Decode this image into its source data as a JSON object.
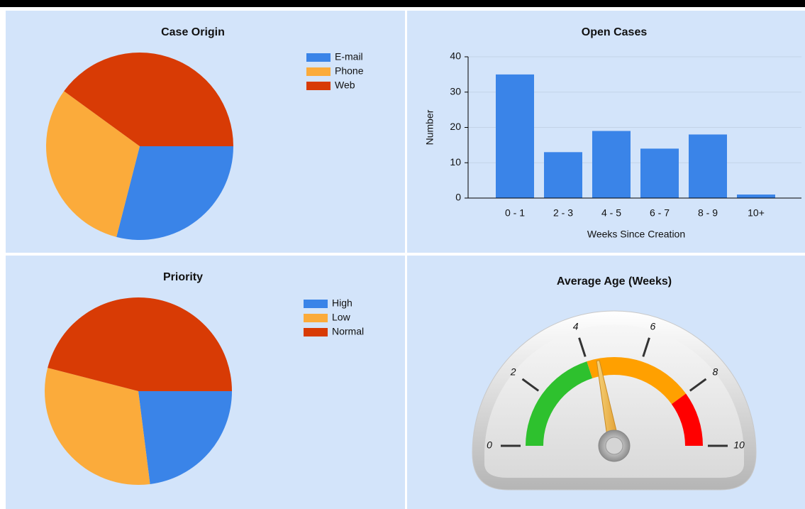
{
  "chart_data": [
    {
      "type": "pie",
      "title": "Case Origin",
      "categories": [
        "E-mail",
        "Phone",
        "Web"
      ],
      "values": [
        29,
        31,
        40
      ],
      "colors": [
        "#3a84e8",
        "#fbab3b",
        "#d83b05"
      ],
      "legend": "right"
    },
    {
      "type": "bar",
      "title": "Open Cases",
      "categories": [
        "0 - 1",
        "2 - 3",
        "4 - 5",
        "6 - 7",
        "8 - 9",
        "10+"
      ],
      "values": [
        35,
        13,
        19,
        14,
        18,
        1
      ],
      "color": "#3a84e8",
      "ylim": [
        0,
        40
      ],
      "yticks": [
        0,
        10,
        20,
        30,
        40
      ],
      "grid": true,
      "y_label": "Number",
      "x_label": "Weeks Since Creation"
    },
    {
      "type": "pie",
      "title": "Priority",
      "categories": [
        "High",
        "Low",
        "Normal"
      ],
      "values": [
        23,
        31,
        46
      ],
      "colors": [
        "#3a84e8",
        "#fbab3b",
        "#d83b05"
      ],
      "legend": "right"
    },
    {
      "type": "gauge",
      "title": "Average Age (Weeks)",
      "value": 4.4,
      "lim": [
        0,
        10
      ],
      "ticks": [
        0,
        2,
        4,
        6,
        8,
        10
      ],
      "bands": [
        {
          "from": 0,
          "to": 4,
          "color": "#2ec12e"
        },
        {
          "from": 4,
          "to": 8,
          "color": "#ffa000"
        },
        {
          "from": 8,
          "to": 10,
          "color": "#ff0000"
        }
      ]
    }
  ]
}
